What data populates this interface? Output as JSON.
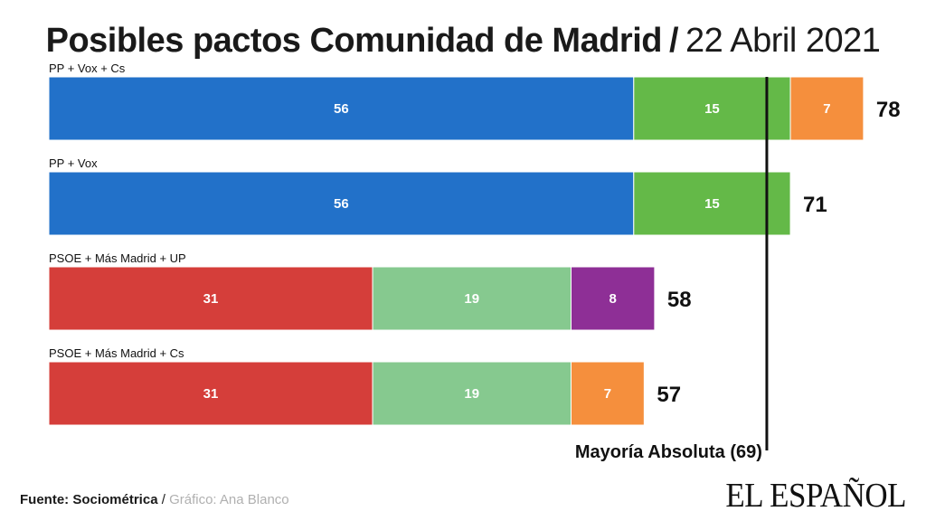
{
  "title": {
    "main": "Posibles pactos Comunidad de Madrid",
    "separator": "/",
    "date": "22 Abril 2021"
  },
  "colors": {
    "PP": "#2271c9",
    "Vox": "#64b948",
    "Cs": "#f58f3d",
    "PSOE": "#d53e3a",
    "Más Madrid": "#86c98f",
    "UP": "#8e2f96",
    "reference_line": "#111111",
    "segment_text": "#ffffff",
    "total_text": "#111111"
  },
  "chart_data": {
    "type": "bar",
    "orientation": "horizontal",
    "stacked": true,
    "xlim": [
      0,
      78
    ],
    "grid": false,
    "categories": [
      "PP + Vox + Cs",
      "PP + Vox",
      "PSOE + Más Madrid + UP",
      "PSOE + Más Madrid + Cs"
    ],
    "rows": [
      {
        "label": "PP + Vox + Cs",
        "segments": [
          {
            "party": "PP",
            "value": 56
          },
          {
            "party": "Vox",
            "value": 15
          },
          {
            "party": "Cs",
            "value": 7
          }
        ],
        "total": 78
      },
      {
        "label": "PP + Vox",
        "segments": [
          {
            "party": "PP",
            "value": 56
          },
          {
            "party": "Vox",
            "value": 15
          }
        ],
        "total": 71
      },
      {
        "label": "PSOE + Más Madrid + UP",
        "segments": [
          {
            "party": "PSOE",
            "value": 31
          },
          {
            "party": "Más Madrid",
            "value": 19
          },
          {
            "party": "UP",
            "value": 8
          }
        ],
        "total": 58
      },
      {
        "label": "PSOE + Más Madrid + Cs",
        "segments": [
          {
            "party": "PSOE",
            "value": 31
          },
          {
            "party": "Más Madrid",
            "value": 19
          },
          {
            "party": "Cs",
            "value": 7
          }
        ],
        "total": 57
      }
    ],
    "reference_line": {
      "value": 69,
      "label": "Mayoría Absoluta (69)"
    }
  },
  "footer": {
    "source_label": "Fuente: Sociométrica",
    "separator": " / ",
    "credit": "Gráfico: Ana Blanco"
  },
  "logo": {
    "text": "EL ESPAÑOL"
  }
}
